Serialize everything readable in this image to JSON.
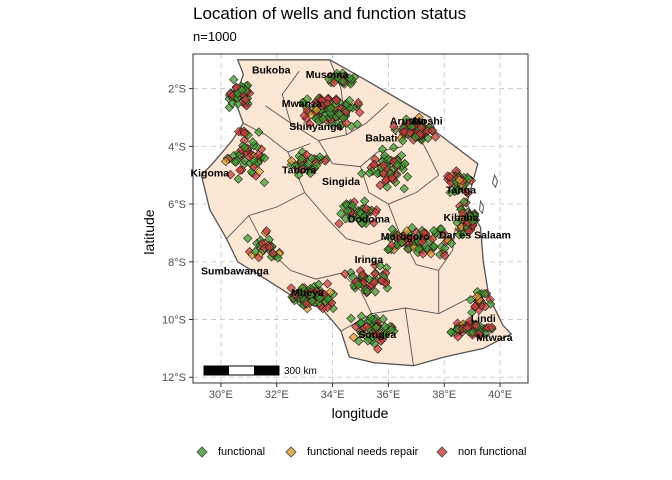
{
  "title": "Location of wells and function status",
  "subtitle": "n=1000",
  "colors": {
    "functional": "#3a9a2f",
    "functional_needs_repair": "#e0a030",
    "non_functional": "#c93a3a",
    "land": "#fbe7d3",
    "border": "#555555",
    "panel_border": "#333333",
    "grid": "#c8c8c8"
  },
  "chart_data": {
    "type": "scatter",
    "xlabel": "longitude",
    "ylabel": "latitude",
    "xlim": [
      29.0,
      41.0
    ],
    "ylim": [
      -12.2,
      -0.8
    ],
    "x_ticks": [
      30,
      32,
      34,
      36,
      38,
      40
    ],
    "x_tick_labels": [
      "30°E",
      "32°E",
      "34°E",
      "36°E",
      "38°E",
      "40°E"
    ],
    "y_ticks": [
      -2,
      -4,
      -6,
      -8,
      -10,
      -12
    ],
    "y_tick_labels": [
      "2°S",
      "4°S",
      "6°S",
      "8°S",
      "10°S",
      "12°S"
    ],
    "grid": "dashed",
    "legend_position": "bottom",
    "series": [
      {
        "name": "functional",
        "color": "#3a9a2f"
      },
      {
        "name": "functional needs repair",
        "color": "#e0a030"
      },
      {
        "name": "non functional",
        "color": "#c93a3a"
      }
    ],
    "scale_bar": {
      "label": "300 km"
    },
    "cities": [
      {
        "name": "Bukoba",
        "lon": 31.8,
        "lat": -1.33
      },
      {
        "name": "Musoma",
        "lon": 33.8,
        "lat": -1.5
      },
      {
        "name": "Mwanza",
        "lon": 32.9,
        "lat": -2.5
      },
      {
        "name": "Shinyanga",
        "lon": 33.4,
        "lat": -3.3
      },
      {
        "name": "Arusha",
        "lon": 36.7,
        "lat": -3.1
      },
      {
        "name": "Moshi",
        "lon": 37.4,
        "lat": -3.1
      },
      {
        "name": "Babati",
        "lon": 35.75,
        "lat": -3.7
      },
      {
        "name": "Kigoma",
        "lon": 29.6,
        "lat": -4.9
      },
      {
        "name": "Tabora",
        "lon": 32.8,
        "lat": -4.8
      },
      {
        "name": "Singida",
        "lon": 34.3,
        "lat": -5.2
      },
      {
        "name": "Tanga",
        "lon": 38.6,
        "lat": -5.5
      },
      {
        "name": "Dodoma",
        "lon": 35.3,
        "lat": -6.5
      },
      {
        "name": "Kibaha",
        "lon": 38.6,
        "lat": -6.45
      },
      {
        "name": "Morogoro",
        "lon": 36.6,
        "lat": -7.1
      },
      {
        "name": "Dar es Salaam",
        "lon": 39.1,
        "lat": -7.05
      },
      {
        "name": "Iringa",
        "lon": 35.3,
        "lat": -7.9
      },
      {
        "name": "Sumbawanga",
        "lon": 30.5,
        "lat": -8.3
      },
      {
        "name": "Mbeya",
        "lon": 33.1,
        "lat": -9.05
      },
      {
        "name": "Lindi",
        "lon": 39.4,
        "lat": -9.95
      },
      {
        "name": "Songea",
        "lon": 35.6,
        "lat": -10.5
      },
      {
        "name": "Mtwara",
        "lon": 39.8,
        "lat": -10.6
      }
    ],
    "clusters": [
      {
        "lon": 34.0,
        "lat": -2.8,
        "spread_lon": 1.4,
        "spread_lat": 0.7,
        "n": 110
      },
      {
        "lon": 37.0,
        "lat": -3.4,
        "spread_lon": 0.9,
        "spread_lat": 0.5,
        "n": 80
      },
      {
        "lon": 36.0,
        "lat": -4.8,
        "spread_lon": 1.1,
        "spread_lat": 0.9,
        "n": 55
      },
      {
        "lon": 38.5,
        "lat": -5.2,
        "spread_lon": 0.6,
        "spread_lat": 0.7,
        "n": 40
      },
      {
        "lon": 30.8,
        "lat": -4.2,
        "spread_lon": 1.1,
        "spread_lat": 1.3,
        "n": 55
      },
      {
        "lon": 30.6,
        "lat": -2.3,
        "spread_lon": 0.7,
        "spread_lat": 0.8,
        "n": 40
      },
      {
        "lon": 33.0,
        "lat": -4.6,
        "spread_lon": 1.0,
        "spread_lat": 0.6,
        "n": 35
      },
      {
        "lon": 37.0,
        "lat": -7.3,
        "spread_lon": 1.7,
        "spread_lat": 0.7,
        "n": 85
      },
      {
        "lon": 38.8,
        "lat": -6.6,
        "spread_lon": 0.6,
        "spread_lat": 0.8,
        "n": 45
      },
      {
        "lon": 35.3,
        "lat": -8.6,
        "spread_lon": 1.0,
        "spread_lat": 0.6,
        "n": 50
      },
      {
        "lon": 33.3,
        "lat": -9.2,
        "spread_lon": 1.2,
        "spread_lat": 0.5,
        "n": 95
      },
      {
        "lon": 31.5,
        "lat": -7.5,
        "spread_lon": 0.9,
        "spread_lat": 0.8,
        "n": 30
      },
      {
        "lon": 35.5,
        "lat": -10.4,
        "spread_lon": 1.0,
        "spread_lat": 0.7,
        "n": 55
      },
      {
        "lon": 38.9,
        "lat": -10.3,
        "spread_lon": 1.0,
        "spread_lat": 0.4,
        "n": 60
      },
      {
        "lon": 34.9,
        "lat": -6.3,
        "spread_lon": 0.9,
        "spread_lat": 0.6,
        "n": 45
      },
      {
        "lon": 39.3,
        "lat": -9.3,
        "spread_lon": 0.5,
        "spread_lat": 0.6,
        "n": 25
      },
      {
        "lon": 34.3,
        "lat": -1.7,
        "spread_lon": 0.8,
        "spread_lat": 0.3,
        "n": 25
      }
    ],
    "status_mix": [
      0.55,
      0.07,
      0.38
    ]
  }
}
